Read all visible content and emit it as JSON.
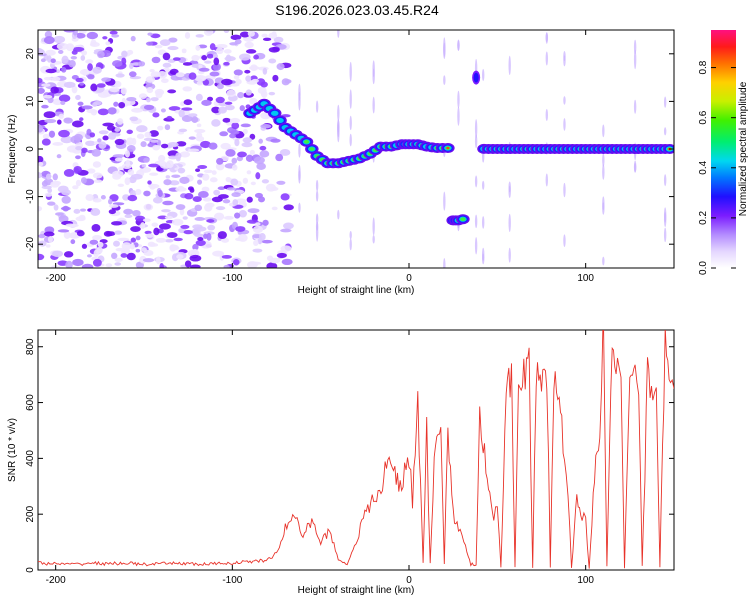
{
  "title": "S196.2026.023.03.45.R24",
  "chart_data": [
    {
      "type": "heatmap",
      "title": "S196.2026.023.03.45.R24",
      "xlabel": "Height of straight line (km)",
      "ylabel": "Frequency (Hz)",
      "xlim": [
        -210,
        150
      ],
      "ylim": [
        -25,
        25
      ],
      "x_ticks": [
        -200,
        -100,
        0,
        100
      ],
      "y_ticks": [
        -20,
        -10,
        0,
        10,
        20
      ],
      "colorbar": {
        "label": "Normalized spectral amplitude",
        "range": [
          0,
          0.95
        ],
        "ticks": [
          0,
          0.2,
          0.4,
          0.6,
          0.8
        ]
      },
      "noise_region_x": [
        -210,
        -80
      ],
      "tracks": [
        {
          "name": "main-tone",
          "points": [
            [
              -90,
              7.5
            ],
            [
              -82,
              9.5
            ],
            [
              -76,
              7.5
            ],
            [
              -70,
              4.5
            ],
            [
              -64,
              3
            ],
            [
              -58,
              1.5
            ],
            [
              -52,
              -1.5
            ],
            [
              -46,
              -3
            ],
            [
              -40,
              -3
            ],
            [
              -34,
              -2.5
            ],
            [
              -28,
              -2
            ],
            [
              -22,
              -1
            ],
            [
              -16,
              0.5
            ],
            [
              -10,
              0.5
            ],
            [
              -4,
              1
            ],
            [
              0,
              1
            ],
            [
              5,
              1
            ],
            [
              10,
              0.5
            ],
            [
              16,
              0.2
            ],
            [
              22,
              0.2
            ],
            [
              45,
              0
            ],
            [
              60,
              0
            ],
            [
              75,
              0
            ],
            [
              90,
              0
            ],
            [
              105,
              0
            ],
            [
              120,
              0
            ],
            [
              135,
              0
            ],
            [
              150,
              0
            ]
          ]
        },
        {
          "name": "side-tone",
          "points": [
            [
              25,
              -15
            ],
            [
              28,
              -15
            ],
            [
              33,
              -14.5
            ]
          ]
        }
      ]
    },
    {
      "type": "line",
      "xlabel": "Height of straight line (km)",
      "ylabel": "SNR (10 * v/v)",
      "xlim": [
        -210,
        150
      ],
      "ylim": [
        0,
        860
      ],
      "x_ticks": [
        -200,
        -100,
        0,
        100
      ],
      "y_ticks": [
        0,
        200,
        400,
        600,
        800
      ],
      "series": [
        {
          "name": "SNR",
          "color": "#e8332a",
          "x": [
            -210,
            -200,
            -190,
            -180,
            -170,
            -160,
            -150,
            -140,
            -130,
            -120,
            -110,
            -100,
            -90,
            -80,
            -75,
            -70,
            -65,
            -60,
            -55,
            -50,
            -45,
            -40,
            -35,
            -30,
            -25,
            -20,
            -15,
            -12,
            -8,
            -5,
            0,
            2,
            5,
            8,
            10,
            12,
            15,
            18,
            20,
            22,
            25,
            28,
            30,
            32,
            35,
            38,
            40,
            42,
            45,
            48,
            50,
            52,
            55,
            58,
            60,
            62,
            65,
            68,
            70,
            72,
            75,
            78,
            80,
            82,
            85,
            88,
            90,
            92,
            95,
            98,
            100,
            102,
            105,
            108,
            110,
            112,
            115,
            118,
            120,
            122,
            125,
            128,
            130,
            132,
            135,
            138,
            140,
            142,
            145,
            148,
            150
          ],
          "y": [
            25,
            22,
            20,
            25,
            22,
            25,
            20,
            22,
            25,
            20,
            22,
            25,
            30,
            35,
            60,
            150,
            200,
            120,
            180,
            100,
            140,
            40,
            20,
            100,
            200,
            250,
            300,
            400,
            350,
            300,
            400,
            250,
            600,
            20,
            500,
            20,
            480,
            500,
            20,
            500,
            200,
            150,
            120,
            80,
            20,
            20,
            600,
            450,
            300,
            200,
            250,
            10,
            600,
            700,
            10,
            750,
            700,
            720,
            10,
            680,
            650,
            720,
            10,
            700,
            600,
            400,
            300,
            10,
            250,
            200,
            180,
            10,
            350,
            450,
            850,
            10,
            800,
            700,
            700,
            10,
            750,
            700,
            700,
            10,
            700,
            650,
            700,
            10,
            850,
            650,
            650
          ]
        }
      ]
    }
  ]
}
